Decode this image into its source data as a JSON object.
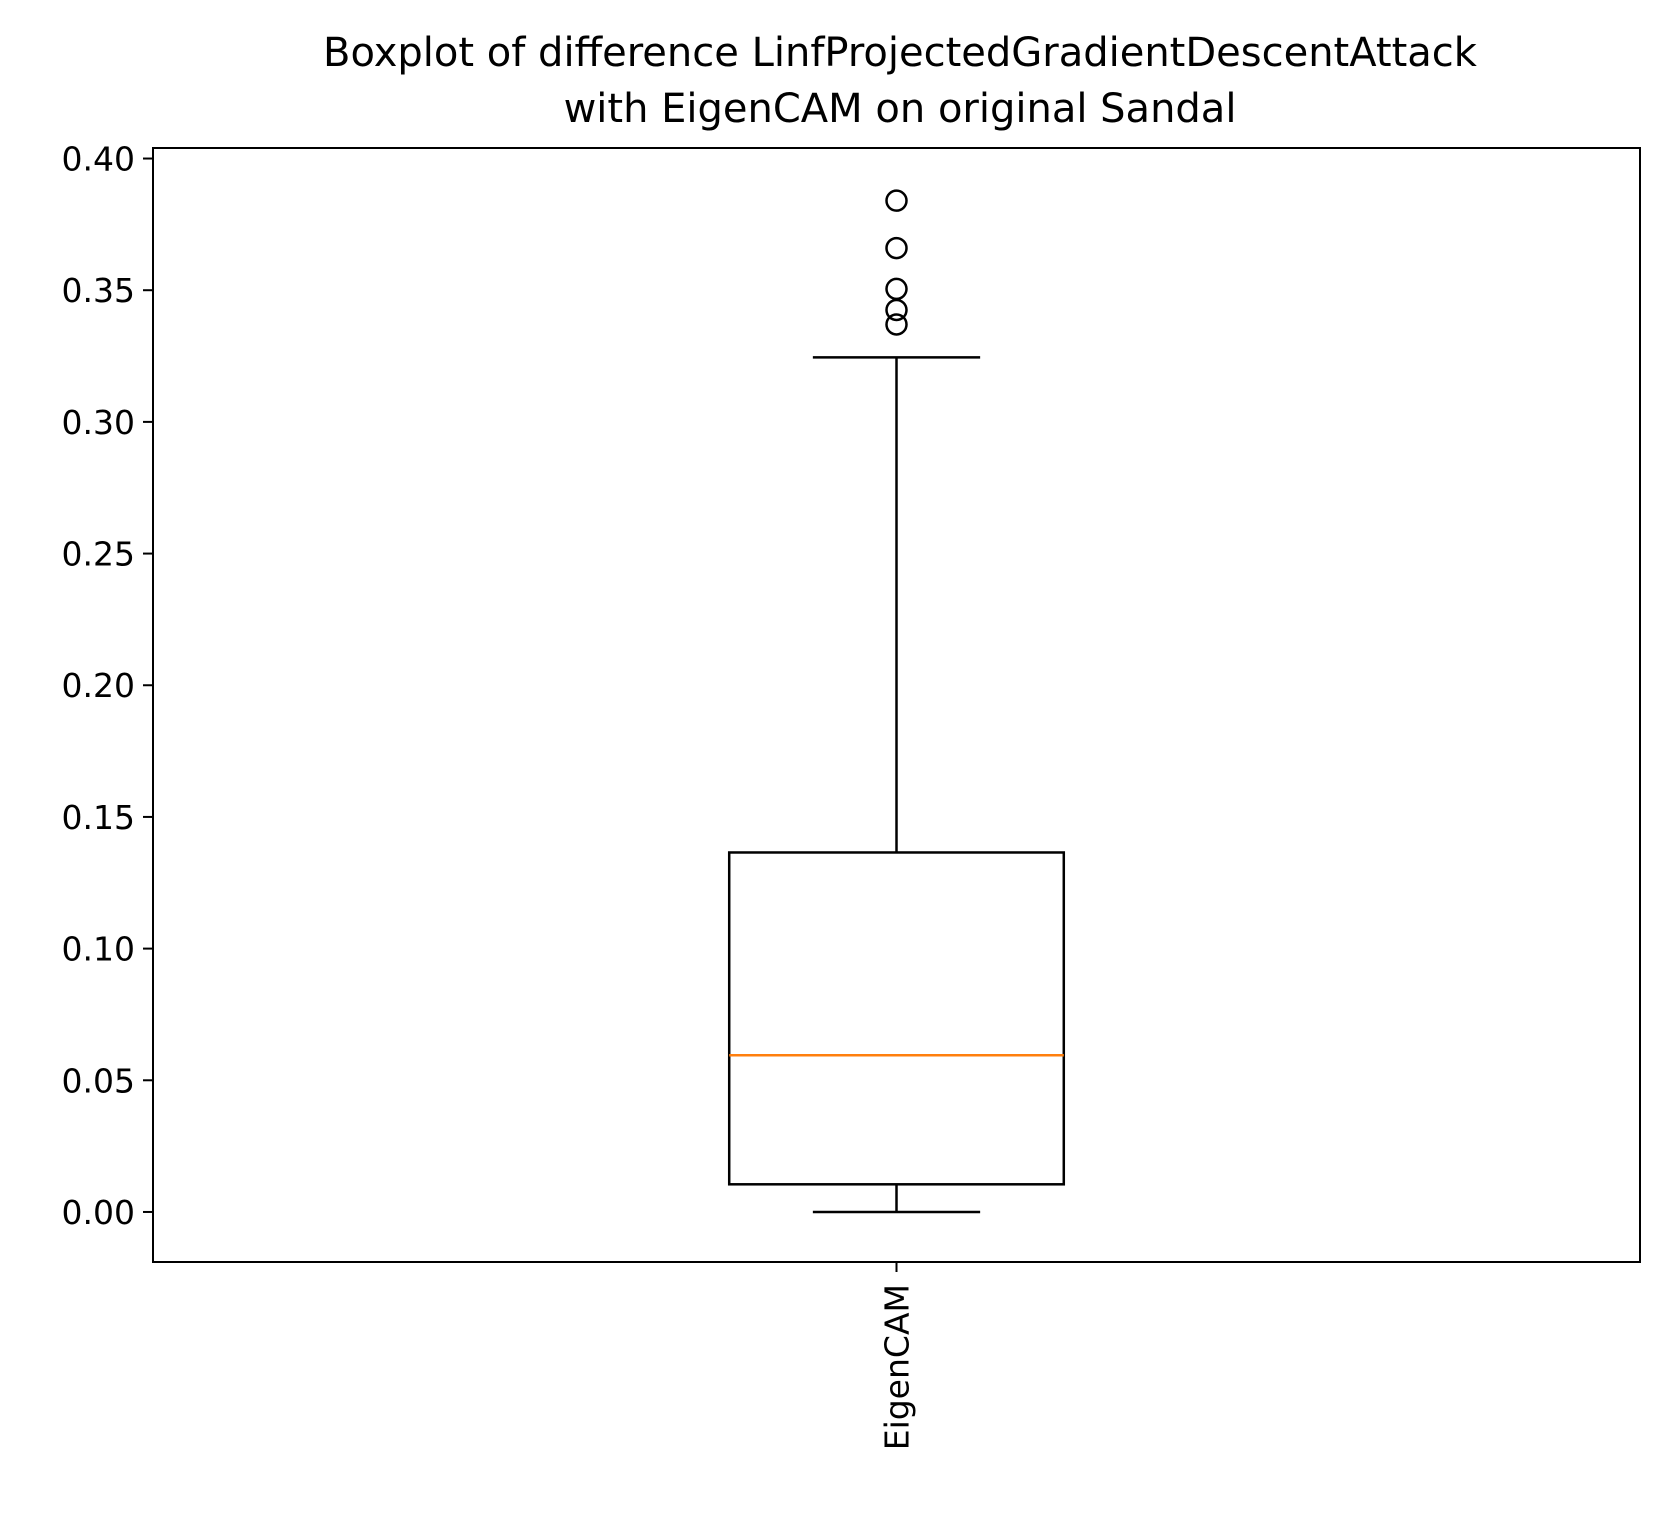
{
  "chart_data": {
    "type": "boxplot",
    "title_lines": [
      "Boxplot of difference LinfProjectedGradientDescentAttack",
      "with EigenCAM on original Sandal"
    ],
    "xlabel": "",
    "ylabel": "",
    "ylim": [
      -0.019,
      0.404
    ],
    "yticks": [
      0.0,
      0.05,
      0.1,
      0.15,
      0.2,
      0.25,
      0.3,
      0.35,
      0.4
    ],
    "ytick_labels": [
      "0.00",
      "0.05",
      "0.10",
      "0.15",
      "0.20",
      "0.25",
      "0.30",
      "0.35",
      "0.40"
    ],
    "categories": [
      "EigenCAM"
    ],
    "xtick_rotation": 90,
    "boxes": [
      {
        "name": "EigenCAM",
        "whisker_low": 0.0,
        "q1": 0.0105,
        "median": 0.0595,
        "q3": 0.1365,
        "whisker_high": 0.3245,
        "outliers": [
          0.337,
          0.3425,
          0.3505,
          0.366,
          0.384
        ]
      }
    ],
    "grid": false,
    "colors": {
      "box": "#000000",
      "median": "#ff7f0e",
      "outlier": "#000000"
    }
  }
}
